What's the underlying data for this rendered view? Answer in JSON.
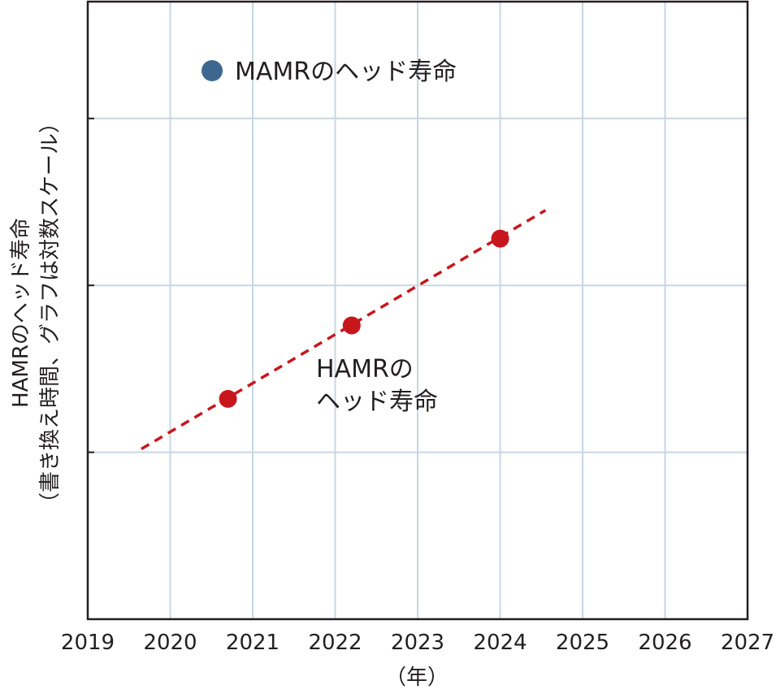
{
  "chart_data": {
    "type": "scatter",
    "title": "",
    "xlabel": "（年）",
    "ylabel_line1": "HAMRのヘッド寿命",
    "ylabel_line2": "（書き換え時間、グラフは対数スケール）",
    "xlim": [
      2019,
      2027
    ],
    "x_ticks": [
      "2019",
      "2020",
      "2021",
      "2022",
      "2023",
      "2024",
      "2025",
      "2026",
      "2027"
    ],
    "y_scale": "log",
    "y_gridline_count": 3,
    "y_range_decades": 3.7,
    "grid": true,
    "series": [
      {
        "name": "HAMRのヘッド寿命",
        "color": "#c8161d",
        "points": [
          {
            "x": 2020.7,
            "y_decade": 1.32
          },
          {
            "x": 2022.2,
            "y_decade": 1.76
          },
          {
            "x": 2024.0,
            "y_decade": 2.28
          }
        ],
        "trend": {
          "x_start": 2019.65,
          "x_end": 2024.55,
          "y_start_decade": 1.02,
          "y_end_decade": 2.45,
          "style": "dashed"
        }
      },
      {
        "name": "MAMRのヘッド寿命",
        "color": "#3e6790",
        "points": []
      }
    ],
    "annotations": {
      "mamr_label": "MAMRのヘッド寿命",
      "hamr_label_line1": "HAMRの",
      "hamr_label_line2": "ヘッド寿命"
    }
  }
}
